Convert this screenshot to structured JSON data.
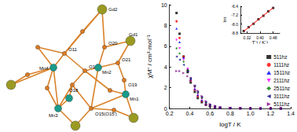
{
  "structure": {
    "atoms": [
      "Gd2",
      "O11",
      "Mn4",
      "O16",
      "O18",
      "Mn2",
      "O20",
      "Gd1",
      "O21",
      "O19",
      "Mn1",
      "Mn3",
      "O15(O15')"
    ]
  },
  "chart_data": [
    {
      "type": "scatter",
      "x_label": "logT / K",
      "y_label": "χM'' / cm³·mol⁻¹",
      "x": [
        0.27,
        0.3,
        0.34,
        0.38,
        0.41,
        0.45,
        0.48,
        0.52,
        0.56,
        0.6,
        0.65,
        0.7,
        0.8,
        0.9,
        1.0,
        1.1,
        1.2,
        1.3
      ],
      "series": [
        {
          "name": "511hz",
          "color": "#000000",
          "marker": "square",
          "values": [
            9.2,
            7.2,
            5.0,
            3.5,
            2.5,
            1.6,
            1.0,
            0.6,
            0.35,
            0.2,
            0.1,
            0.05,
            0.02,
            0.01,
            0,
            0,
            0,
            0
          ]
        },
        {
          "name": "1111hz",
          "color": "#ff0000",
          "marker": "circle",
          "values": [
            8.4,
            6.8,
            5.0,
            3.7,
            2.7,
            1.8,
            1.2,
            0.7,
            0.4,
            0.25,
            0.12,
            0.06,
            0.02,
            0.01,
            0,
            0,
            0,
            0
          ]
        },
        {
          "name": "1511hz",
          "color": "#0000ff",
          "marker": "triangle_up",
          "values": [
            7.7,
            6.4,
            4.9,
            3.8,
            2.8,
            1.9,
            1.3,
            0.8,
            0.45,
            0.28,
            0.14,
            0.07,
            0.03,
            0.01,
            0,
            0,
            0,
            0
          ]
        },
        {
          "name": "2111hz",
          "color": "#ff00ff",
          "marker": "triangle_down",
          "values": [
            6.6,
            5.8,
            4.7,
            3.8,
            2.9,
            2.0,
            1.4,
            0.9,
            0.5,
            0.3,
            0.16,
            0.08,
            0.03,
            0.01,
            0,
            0,
            0,
            0
          ]
        },
        {
          "name": "2511hz",
          "color": "#008000",
          "marker": "diamond",
          "values": [
            5.8,
            5.3,
            4.5,
            3.7,
            2.9,
            2.1,
            1.5,
            1.0,
            0.55,
            0.33,
            0.18,
            0.09,
            0.03,
            0.01,
            0,
            0,
            0,
            0
          ]
        },
        {
          "name": "3111hz",
          "color": "#000080",
          "marker": "triangle_left",
          "values": [
            5.0,
            4.7,
            4.2,
            3.6,
            2.9,
            2.2,
            1.6,
            1.1,
            0.6,
            0.36,
            0.2,
            0.1,
            0.04,
            0.01,
            0,
            0,
            0,
            0
          ]
        },
        {
          "name": "5111hz",
          "color": "#800080",
          "marker": "triangle_right",
          "values": [
            3.6,
            3.6,
            3.4,
            3.1,
            2.7,
            2.2,
            1.7,
            1.2,
            0.7,
            0.42,
            0.24,
            0.12,
            0.05,
            0.02,
            0,
            0,
            0,
            0
          ]
        }
      ],
      "xlim": [
        0.2,
        1.4
      ],
      "xticks": [
        0.2,
        0.4,
        0.6,
        0.8,
        {
          "value": 1,
          "label": "1.0"
        },
        1.2,
        1.4
      ],
      "ylim": [
        0,
        10
      ],
      "yticks": [
        0,
        2,
        4,
        6,
        8,
        10
      ],
      "legend": "right",
      "grid": false
    },
    {
      "type": "scatter",
      "x_label": "T⁻¹ / K⁻¹",
      "y_label": "lnτ",
      "x": [
        0.3,
        0.33,
        0.36,
        0.39,
        0.42,
        0.45,
        0.48
      ],
      "series": [
        {
          "type": "scatter",
          "color": "#000000",
          "marker": "square",
          "values": [
            -8.62,
            -8.28,
            -7.97,
            -7.57,
            -7.25,
            -6.86,
            -6.55
          ]
        },
        {
          "type": "line",
          "color": "#ff0000",
          "line_style": "solid",
          "values": [
            -8.65,
            -8.3,
            -7.94,
            -7.59,
            -7.24,
            -6.88,
            -6.53
          ]
        }
      ],
      "xlim": [
        0.28,
        0.52
      ],
      "xticks": [
        0.32,
        {
          "value": 0.4,
          "label": "0.40"
        },
        0.48
      ],
      "ylim": [
        -8.8,
        -6.4
      ],
      "yticks": [
        -6.4,
        -7.2,
        {
          "value": -8,
          "label": "-8.0"
        },
        -8.8
      ],
      "grid": false
    }
  ]
}
